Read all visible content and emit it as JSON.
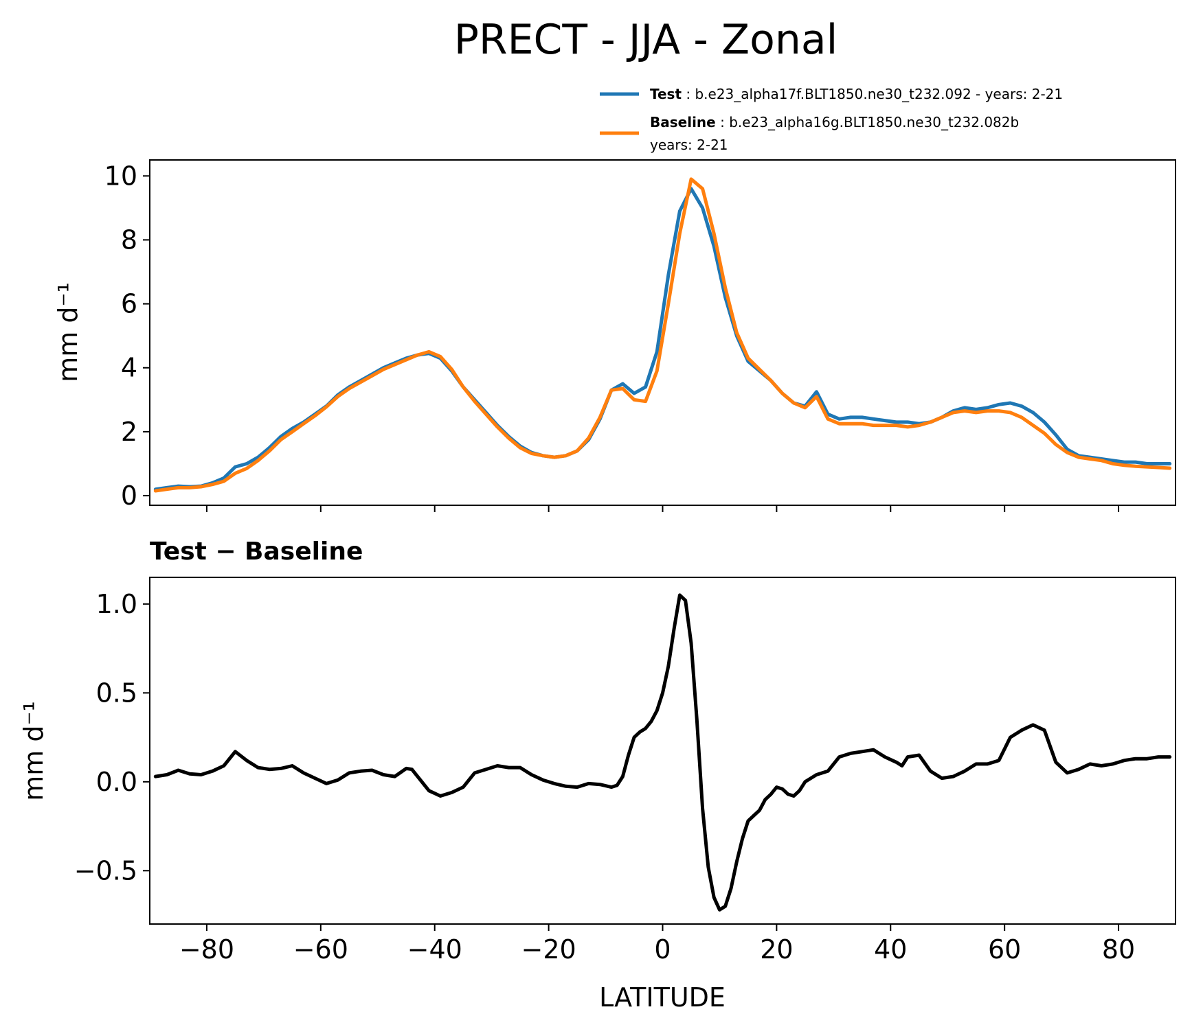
{
  "chart_data": [
    {
      "type": "line",
      "title": "PRECT - JJA - Zonal",
      "xlabel": "",
      "ylabel": "mm d⁻¹",
      "xlim": [
        -90,
        90
      ],
      "ylim": [
        -0.3,
        10.5
      ],
      "yticks": [
        0,
        2,
        4,
        6,
        8,
        10
      ],
      "xticks": [
        -80,
        -60,
        -40,
        -20,
        0,
        20,
        40,
        60,
        80
      ],
      "legend": {
        "position": "top-right, above axes",
        "entries": [
          {
            "name_bold": "Test",
            "text": ": b.e23_alpha17f.BLT1850.ne30_t232.092 - years: 2-21",
            "line2": ""
          },
          {
            "name_bold": "Baseline",
            "text": ": b.e23_alpha16g.BLT1850.ne30_t232.082b",
            "line2": "years: 2-21"
          }
        ]
      },
      "x": [
        -89,
        -87,
        -85,
        -83,
        -81,
        -79,
        -77,
        -75,
        -73,
        -71,
        -69,
        -67,
        -65,
        -63,
        -61,
        -59,
        -57,
        -55,
        -53,
        -51,
        -49,
        -47,
        -45,
        -43,
        -41,
        -39,
        -37,
        -35,
        -33,
        -31,
        -29,
        -27,
        -25,
        -23,
        -21,
        -19,
        -17,
        -15,
        -13,
        -11,
        -9,
        -7,
        -5,
        -3,
        -1,
        1,
        3,
        5,
        7,
        9,
        11,
        13,
        15,
        17,
        19,
        21,
        23,
        25,
        27,
        29,
        31,
        33,
        35,
        37,
        39,
        41,
        43,
        45,
        47,
        49,
        51,
        53,
        55,
        57,
        59,
        61,
        63,
        65,
        67,
        69,
        71,
        73,
        75,
        77,
        79,
        81,
        83,
        85,
        87,
        89
      ],
      "series": [
        {
          "name": "Test",
          "color": "#1f77b4",
          "values": [
            0.2,
            0.25,
            0.3,
            0.28,
            0.3,
            0.4,
            0.55,
            0.9,
            1.0,
            1.2,
            1.5,
            1.85,
            2.1,
            2.3,
            2.55,
            2.8,
            3.15,
            3.4,
            3.6,
            3.8,
            4.0,
            4.15,
            4.3,
            4.4,
            4.45,
            4.3,
            3.9,
            3.4,
            3.0,
            2.6,
            2.2,
            1.85,
            1.55,
            1.35,
            1.25,
            1.2,
            1.25,
            1.4,
            1.75,
            2.4,
            3.3,
            3.5,
            3.2,
            3.4,
            4.5,
            6.9,
            8.9,
            9.6,
            9.0,
            7.8,
            6.2,
            5.0,
            4.2,
            3.9,
            3.6,
            3.2,
            2.9,
            2.8,
            3.25,
            2.55,
            2.4,
            2.45,
            2.45,
            2.4,
            2.35,
            2.3,
            2.3,
            2.25,
            2.3,
            2.45,
            2.65,
            2.75,
            2.7,
            2.75,
            2.85,
            2.9,
            2.8,
            2.6,
            2.3,
            1.9,
            1.45,
            1.25,
            1.2,
            1.15,
            1.1,
            1.05,
            1.05,
            1.0,
            1.0,
            1.0
          ]
        },
        {
          "name": "Baseline",
          "color": "#ff7f0e",
          "values": [
            0.15,
            0.2,
            0.25,
            0.25,
            0.28,
            0.35,
            0.45,
            0.7,
            0.85,
            1.1,
            1.4,
            1.75,
            2.0,
            2.25,
            2.5,
            2.78,
            3.1,
            3.35,
            3.55,
            3.75,
            3.95,
            4.1,
            4.25,
            4.4,
            4.5,
            4.35,
            3.95,
            3.4,
            2.95,
            2.55,
            2.15,
            1.8,
            1.5,
            1.32,
            1.25,
            1.2,
            1.25,
            1.4,
            1.8,
            2.45,
            3.3,
            3.35,
            3.0,
            2.95,
            3.9,
            6.0,
            8.2,
            9.9,
            9.6,
            8.2,
            6.5,
            5.1,
            4.3,
            3.95,
            3.6,
            3.2,
            2.9,
            2.75,
            3.1,
            2.4,
            2.25,
            2.25,
            2.25,
            2.2,
            2.2,
            2.2,
            2.15,
            2.2,
            2.3,
            2.45,
            2.6,
            2.65,
            2.6,
            2.65,
            2.65,
            2.6,
            2.45,
            2.2,
            1.95,
            1.6,
            1.35,
            1.2,
            1.15,
            1.1,
            1.0,
            0.95,
            0.92,
            0.9,
            0.88,
            0.86
          ]
        }
      ]
    },
    {
      "type": "line",
      "title": "Test − Baseline",
      "xlabel": "LATITUDE",
      "ylabel": "mm d⁻¹",
      "xlim": [
        -90,
        90
      ],
      "ylim": [
        -0.8,
        1.15
      ],
      "yticks": [
        -0.5,
        0.0,
        0.5,
        1.0
      ],
      "ytick_labels": [
        "−0.5",
        "0.0",
        "0.5",
        "1.0"
      ],
      "xticks": [
        -80,
        -60,
        -40,
        -20,
        0,
        20,
        40,
        60,
        80
      ],
      "xtick_labels": [
        "−80",
        "−60",
        "−40",
        "−20",
        "0",
        "20",
        "40",
        "60",
        "80"
      ],
      "series": [
        {
          "name": "Test − Baseline",
          "color": "#000000",
          "x": [
            -89,
            -87,
            -85,
            -83,
            -81,
            -79,
            -77,
            -75,
            -73,
            -71,
            -69,
            -67,
            -65,
            -63,
            -61,
            -59,
            -57,
            -55,
            -53,
            -51,
            -49,
            -47,
            -45,
            -44,
            -43,
            -41,
            -39,
            -37,
            -35,
            -33,
            -31,
            -29,
            -27,
            -25,
            -23,
            -21,
            -19,
            -17,
            -15,
            -13,
            -11,
            -9,
            -8,
            -7,
            -6,
            -5,
            -4,
            -3,
            -2,
            -1,
            0,
            1,
            2,
            3,
            4,
            5,
            6,
            7,
            8,
            9,
            10,
            11,
            12,
            13,
            14,
            15,
            16,
            17,
            18,
            19,
            20,
            21,
            22,
            23,
            24,
            25,
            27,
            29,
            31,
            33,
            35,
            37,
            39,
            41,
            42,
            43,
            45,
            47,
            49,
            51,
            53,
            55,
            57,
            59,
            61,
            63,
            65,
            67,
            69,
            71,
            73,
            75,
            77,
            79,
            81,
            83,
            85,
            87,
            89
          ],
          "values": [
            0.03,
            0.04,
            0.065,
            0.045,
            0.04,
            0.06,
            0.09,
            0.17,
            0.12,
            0.08,
            0.07,
            0.075,
            0.09,
            0.05,
            0.02,
            -0.01,
            0.01,
            0.05,
            0.06,
            0.065,
            0.04,
            0.03,
            0.075,
            0.07,
            0.03,
            -0.05,
            -0.08,
            -0.06,
            -0.03,
            0.05,
            0.07,
            0.09,
            0.08,
            0.08,
            0.04,
            0.01,
            -0.01,
            -0.025,
            -0.03,
            -0.01,
            -0.015,
            -0.03,
            -0.02,
            0.03,
            0.15,
            0.25,
            0.28,
            0.3,
            0.34,
            0.4,
            0.5,
            0.65,
            0.86,
            1.05,
            1.02,
            0.78,
            0.35,
            -0.15,
            -0.48,
            -0.65,
            -0.72,
            -0.7,
            -0.6,
            -0.45,
            -0.32,
            -0.22,
            -0.19,
            -0.16,
            -0.1,
            -0.07,
            -0.03,
            -0.04,
            -0.07,
            -0.08,
            -0.05,
            0.0,
            0.04,
            0.06,
            0.14,
            0.16,
            0.17,
            0.18,
            0.14,
            0.11,
            0.09,
            0.14,
            0.15,
            0.06,
            0.02,
            0.03,
            0.06,
            0.1,
            0.1,
            0.12,
            0.25,
            0.29,
            0.32,
            0.29,
            0.11,
            0.05,
            0.07,
            0.1,
            0.09,
            0.1,
            0.12,
            0.13,
            0.13,
            0.14,
            0.14
          ]
        }
      ]
    }
  ]
}
